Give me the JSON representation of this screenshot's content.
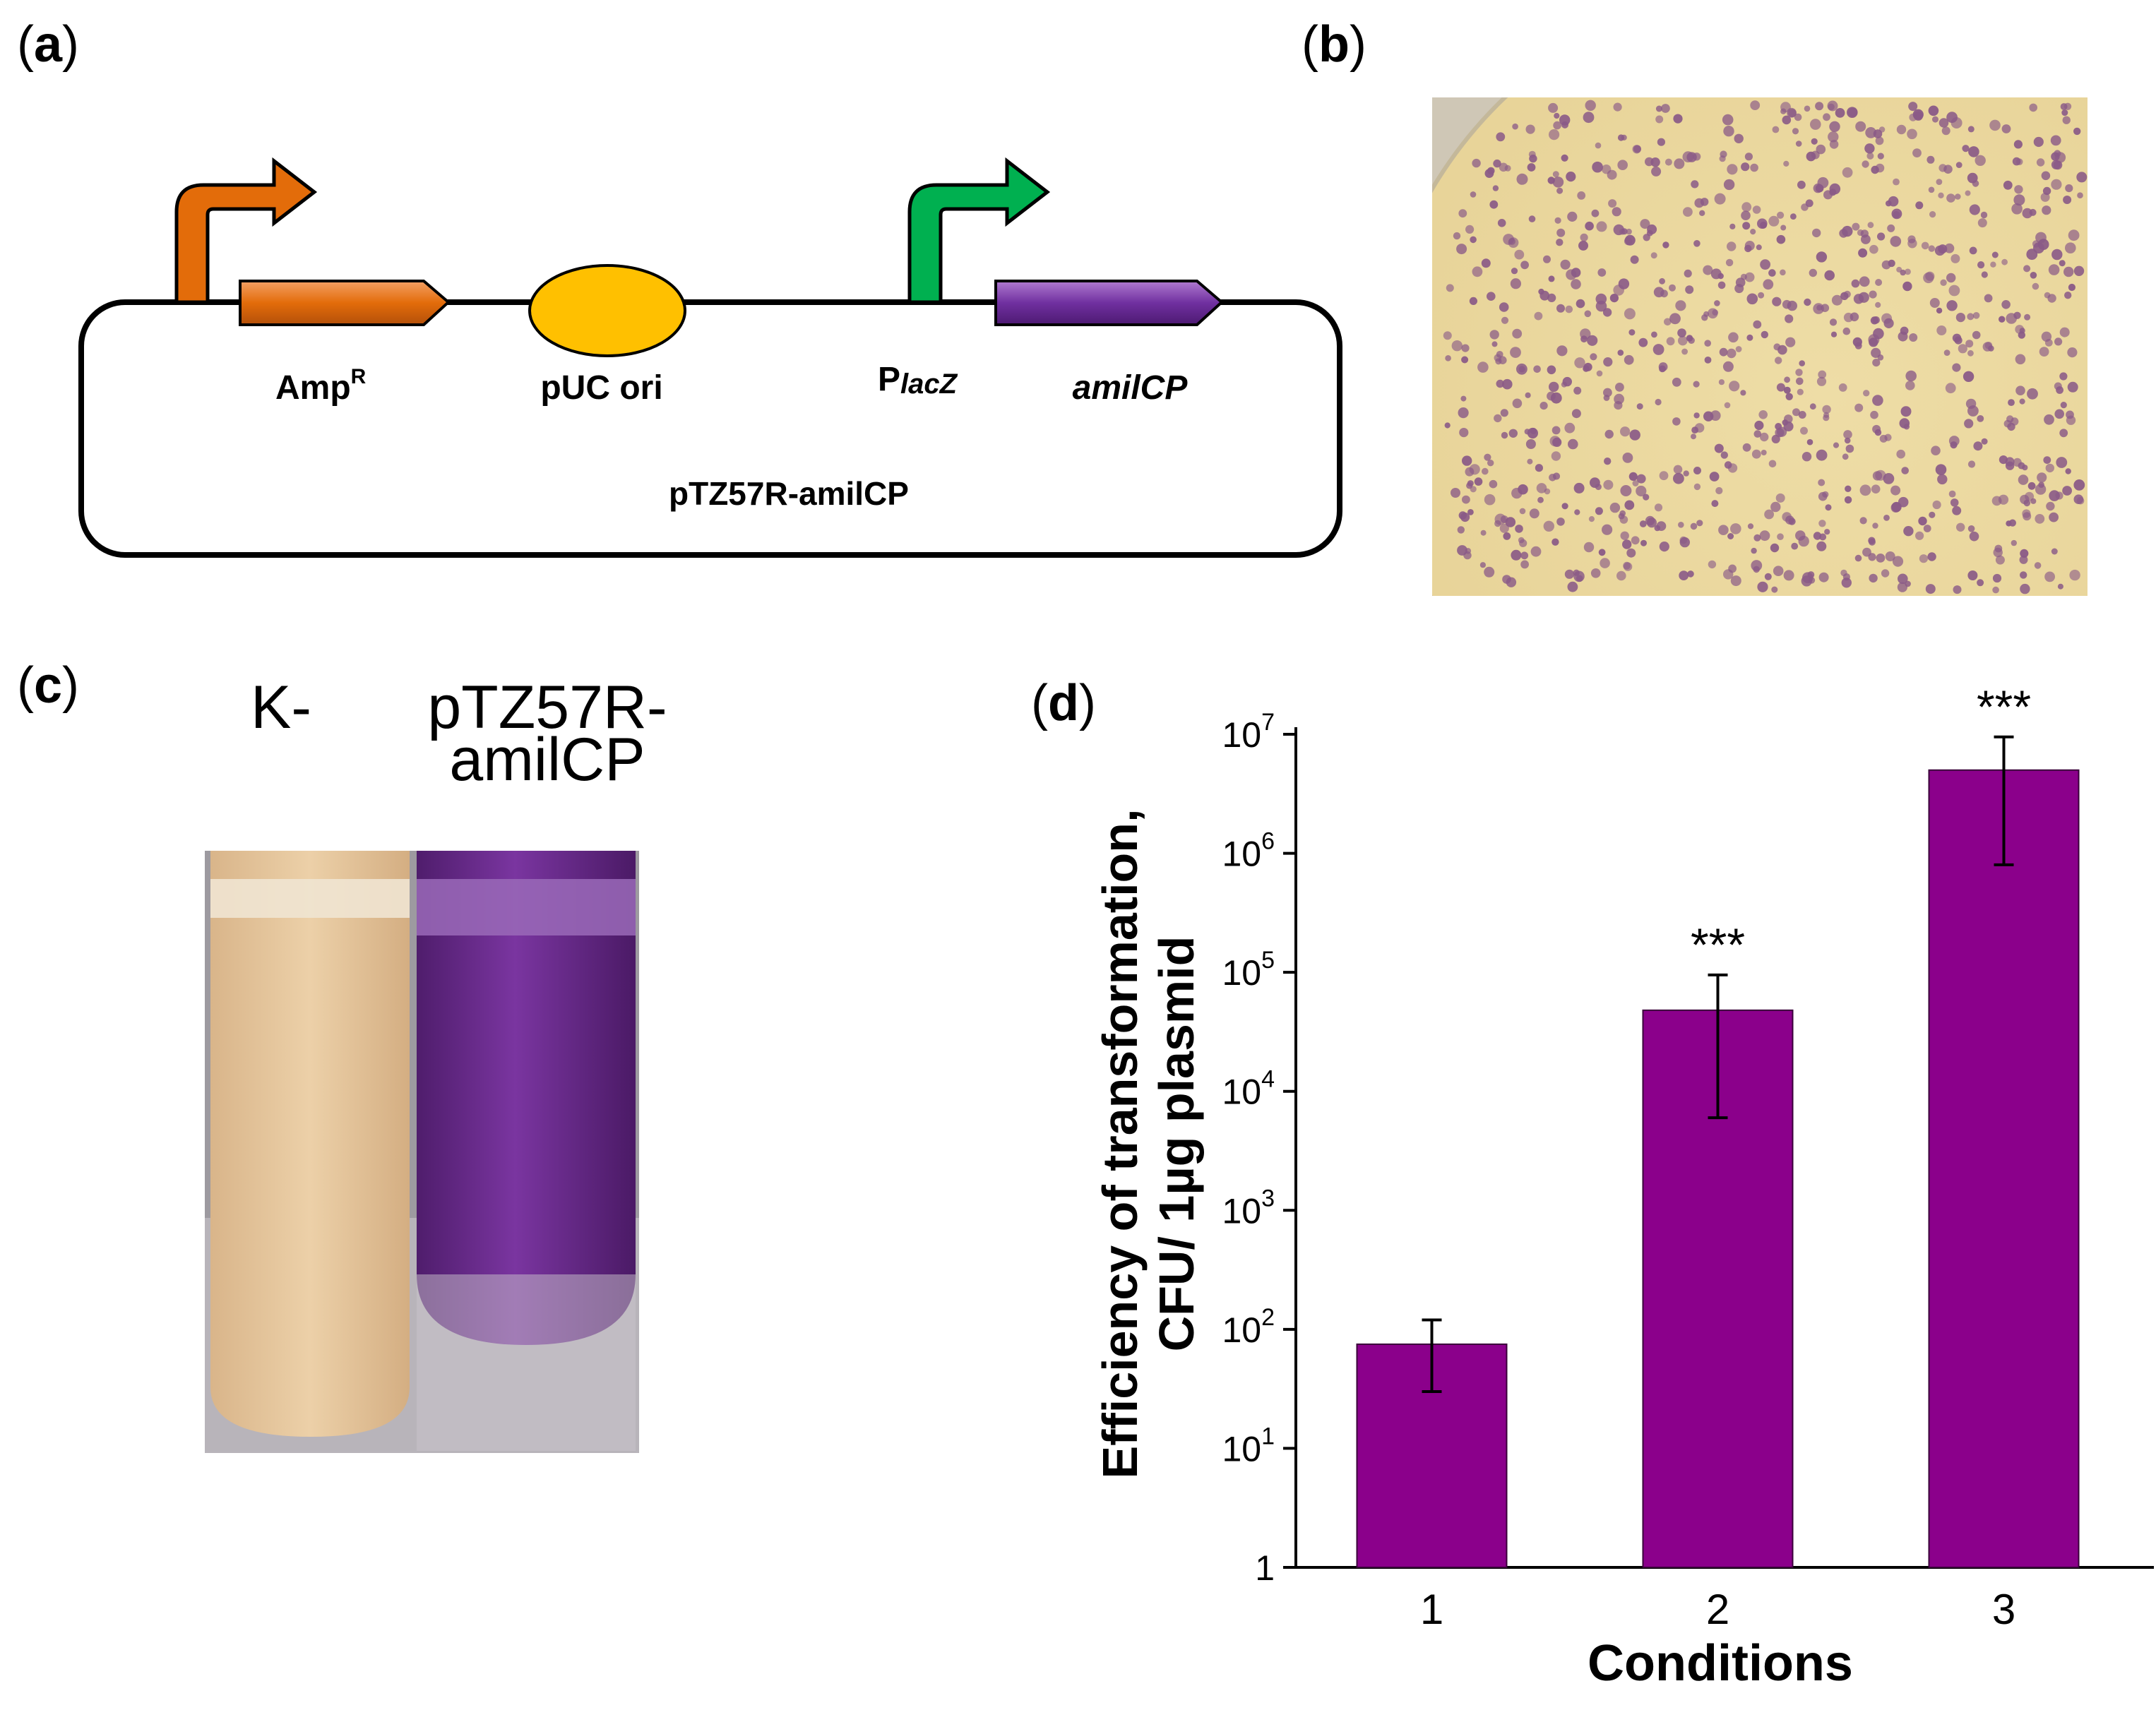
{
  "panels": {
    "a": {
      "label": "a"
    },
    "b": {
      "label": "b"
    },
    "c": {
      "label": "c"
    },
    "d": {
      "label": "d"
    }
  },
  "plasmid": {
    "name": "pTZ57R-amilCP",
    "amp_label": "Amp",
    "amp_sup": "R",
    "ori_label": "pUC ori",
    "promoter_label": "P",
    "promoter_sub": "lacZ",
    "gene_label": "amilCP",
    "colors": {
      "amp_promoter": "#e36c0a",
      "amp_gene": "#e36c0a",
      "ori": "#ffc000",
      "lac_promoter": "#00b050",
      "gene": "#7030a0"
    }
  },
  "tubes": {
    "left_label": "K-",
    "right_label_line1": "pTZ57R-",
    "right_label_line2": "amilCP",
    "colors": {
      "control": "#e6c59b",
      "amilcp": "#6a2a86"
    }
  },
  "plate": {
    "colors": {
      "agar": "#e8d49a",
      "colony": "#8a5a87"
    }
  },
  "chart_data": {
    "type": "bar",
    "categories": [
      "1",
      "2",
      "3"
    ],
    "values": [
      75,
      48000,
      5000000
    ],
    "error_low": [
      30,
      6000,
      800000
    ],
    "error_high": [
      120,
      95000,
      9500000
    ],
    "significance": [
      "",
      "***",
      "***"
    ],
    "xlabel": "Conditions",
    "ylabel_line1": "Efficiency of transformation,",
    "ylabel_line2": "CFU/ 1µg plasmid",
    "yscale": "log",
    "ylim": [
      1,
      10000000
    ],
    "yticks": [
      {
        "value": 1,
        "base": "1",
        "exp": ""
      },
      {
        "value": 10,
        "base": "10",
        "exp": "1"
      },
      {
        "value": 100,
        "base": "10",
        "exp": "2"
      },
      {
        "value": 1000,
        "base": "10",
        "exp": "3"
      },
      {
        "value": 10000,
        "base": "10",
        "exp": "4"
      },
      {
        "value": 100000,
        "base": "10",
        "exp": "5"
      },
      {
        "value": 1000000,
        "base": "10",
        "exp": "6"
      },
      {
        "value": 10000000,
        "base": "10",
        "exp": "7"
      }
    ],
    "bar_color": "#8b008b"
  }
}
